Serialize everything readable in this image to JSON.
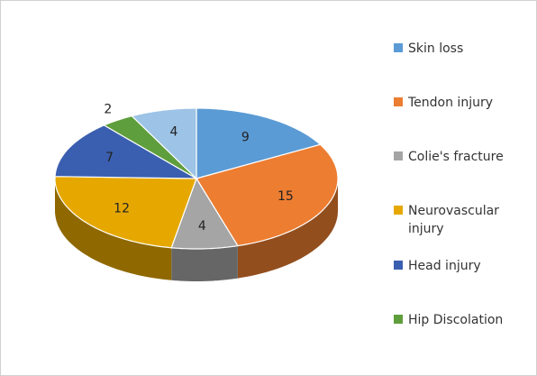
{
  "chart_data": {
    "type": "pie3d",
    "categories": [
      "Skin loss",
      "Tendon injury",
      "Colie's fracture",
      "Neurovascular injury",
      "Head injury",
      "Hip Discolation",
      null
    ],
    "values": [
      9,
      15,
      4,
      12,
      7,
      2,
      4
    ],
    "colors": [
      "#5b9bd5",
      "#ed7d31",
      "#a5a5a5",
      "#e6a800",
      "#3a5fb0",
      "#5f9e3c",
      "#9dc3e6"
    ],
    "legend": "right"
  }
}
